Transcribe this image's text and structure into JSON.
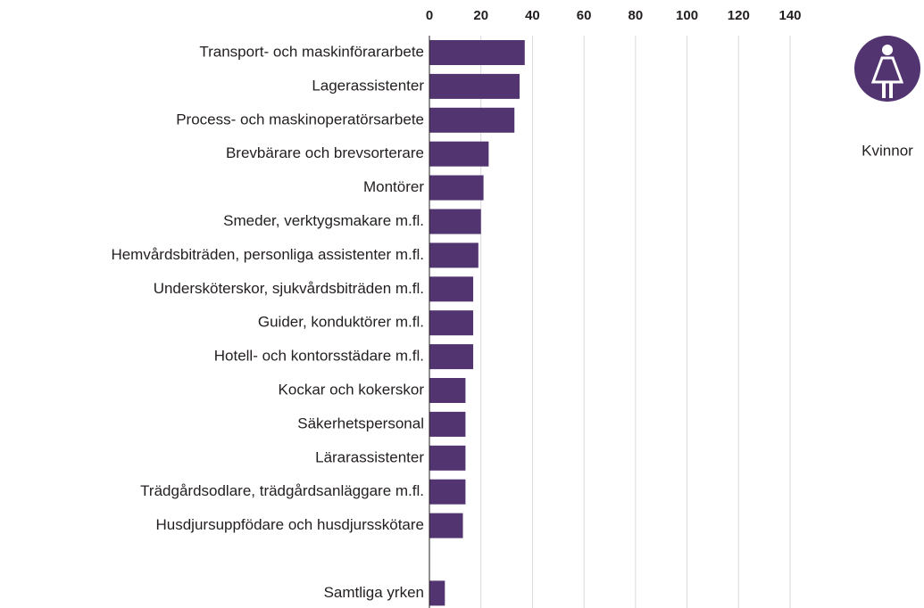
{
  "chart_data": {
    "type": "bar",
    "orientation": "horizontal",
    "categories": [
      "Transport- och maskinförararbete",
      "Lagerassistenter",
      "Process- och maskinoperatörsarbete",
      "Brevbärare och brevsorterare",
      "Montörer",
      "Smeder, verktygsmakare m.fl.",
      "Hemvårdsbiträden, personliga assistenter m.fl.",
      "Undersköterskor, sjukvårdsbiträden m.fl.",
      "Guider, konduktörer m.fl.",
      "Hotell- och kontorsstädare m.fl.",
      "Kockar och kokerskor",
      "Säkerhetspersonal",
      "Lärarassistenter",
      "Trädgårdsodlare, trädgårdsanläggare m.fl.",
      "Husdjursuppfödare och husdjursskötare",
      null,
      "Samtliga yrken"
    ],
    "series": [
      {
        "name": "Kvinnor",
        "color": "#523471",
        "values": [
          37,
          35,
          33,
          23,
          21,
          20,
          19,
          17,
          17,
          17,
          14,
          14,
          14,
          14,
          13,
          null,
          6
        ]
      }
    ],
    "xlim": [
      0,
      140
    ],
    "xticks": [
      0,
      20,
      40,
      60,
      80,
      100,
      120,
      140
    ],
    "grid": true
  }
}
